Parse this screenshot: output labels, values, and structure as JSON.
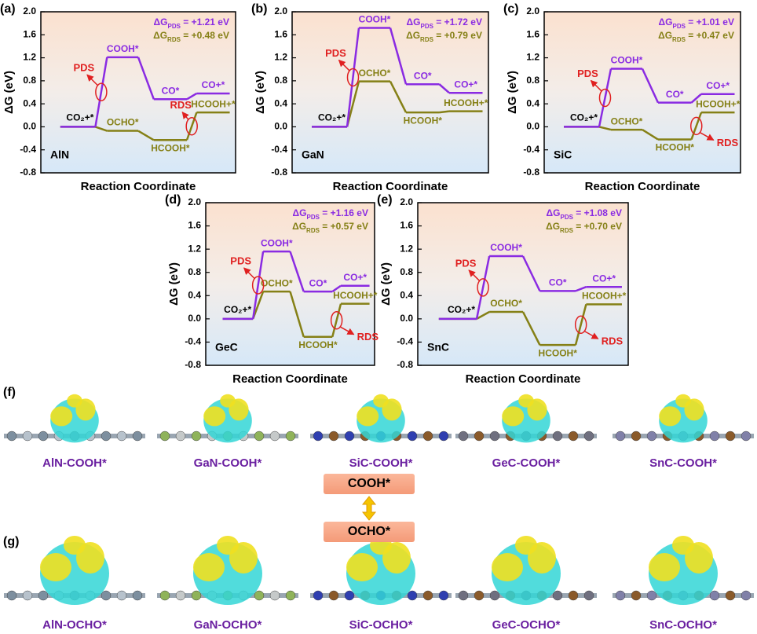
{
  "chart_data": [
    {
      "type": "line",
      "panel": "(a)",
      "material": "AlN",
      "xlabel": "Reaction Coordinate",
      "ylabel": "ΔG (eV)",
      "ylim": [
        -0.8,
        2.0
      ],
      "yticks": [
        -0.8,
        -0.4,
        {
          "value": 0,
          "label": "0.0"
        },
        0.4,
        0.8,
        1.2,
        1.6,
        {
          "value": 2,
          "label": "2.0"
        }
      ],
      "series": [
        {
          "color": "#8a2be2",
          "values": [
            0,
            1.21,
            0.48,
            0.58
          ],
          "point_labels": [
            "CO₂+*",
            "COOH*",
            "CO*",
            "CO+*"
          ]
        },
        {
          "color": "#858016",
          "values": [
            0,
            -0.07,
            -0.23,
            0.25
          ],
          "point_labels": [
            null,
            "OCHO*",
            "HCOOH*",
            "HCOOH+*"
          ]
        }
      ],
      "annotations": [
        [
          "ΔG",
          "PDS",
          " = +1.21 eV"
        ],
        [
          "ΔG",
          "RDS",
          " = +0.48 eV"
        ]
      ],
      "pds_label": "PDS",
      "rds_label": "RDS"
    },
    {
      "type": "line",
      "panel": "(b)",
      "material": "GaN",
      "xlabel": "Reaction Coordinate",
      "ylabel": "ΔG (eV)",
      "ylim": [
        -0.8,
        2.0
      ],
      "yticks": [
        -0.8,
        -0.4,
        {
          "value": 0,
          "label": "0.0"
        },
        0.4,
        0.8,
        1.2,
        1.6,
        {
          "value": 2,
          "label": "2.0"
        }
      ],
      "series": [
        {
          "color": "#8a2be2",
          "values": [
            0,
            1.72,
            0.74,
            0.59
          ],
          "point_labels": [
            "CO₂+*",
            "COOH*",
            "CO*",
            "CO+*"
          ]
        },
        {
          "color": "#858016",
          "values": [
            0,
            0.79,
            0.25,
            0.27
          ],
          "point_labels": [
            null,
            "OCHO*",
            "HCOOH*",
            "HCOOH+*"
          ]
        }
      ],
      "annotations": [
        [
          "ΔG",
          "PDS",
          " = +1.72 eV"
        ],
        [
          "ΔG",
          "RDS",
          " = +0.79 eV"
        ]
      ],
      "pds_label": "PDS"
    },
    {
      "type": "line",
      "panel": "(c)",
      "material": "SiC",
      "xlabel": "Reaction Coordinate",
      "ylabel": "ΔG (eV)",
      "ylim": [
        -0.8,
        2.0
      ],
      "yticks": [
        -0.8,
        -0.4,
        {
          "value": 0,
          "label": "0.0"
        },
        0.4,
        0.8,
        1.2,
        1.6,
        {
          "value": 2,
          "label": "2.0"
        }
      ],
      "series": [
        {
          "color": "#8a2be2",
          "values": [
            0,
            1.01,
            0.42,
            0.57
          ],
          "point_labels": [
            "CO₂+*",
            "COOH*",
            "CO*",
            "CO+*"
          ]
        },
        {
          "color": "#858016",
          "values": [
            0,
            -0.05,
            -0.22,
            0.25
          ],
          "point_labels": [
            null,
            "OCHO*",
            "HCOOH*",
            "HCOOH+*"
          ]
        }
      ],
      "annotations": [
        [
          "ΔG",
          "PDS",
          " = +1.01 eV"
        ],
        [
          "ΔG",
          "RDS",
          " = +0.47 eV"
        ]
      ],
      "pds_label": "PDS",
      "rds_label": "RDS"
    },
    {
      "type": "line",
      "panel": "(d)",
      "material": "GeC",
      "xlabel": "Reaction Coordinate",
      "ylabel": "ΔG (eV)",
      "ylim": [
        -0.8,
        2.0
      ],
      "yticks": [
        -0.8,
        -0.4,
        {
          "value": 0,
          "label": "0.0"
        },
        0.4,
        0.8,
        1.2,
        1.6,
        {
          "value": 2,
          "label": "2.0"
        }
      ],
      "series": [
        {
          "color": "#8a2be2",
          "values": [
            0,
            1.16,
            0.47,
            0.57
          ],
          "point_labels": [
            "CO₂+*",
            "COOH*",
            "CO*",
            "CO+*"
          ]
        },
        {
          "color": "#858016",
          "values": [
            0,
            0.47,
            -0.31,
            0.26
          ],
          "point_labels": [
            null,
            "OCHO*",
            "HCOOH*",
            "HCOOH+*"
          ]
        }
      ],
      "annotations": [
        [
          "ΔG",
          "PDS",
          " = +1.16 eV"
        ],
        [
          "ΔG",
          "RDS",
          " = +0.57 eV"
        ]
      ],
      "pds_label": "PDS",
      "rds_label": "RDS"
    },
    {
      "type": "line",
      "panel": "(e)",
      "material": "SnC",
      "xlabel": "Reaction Coordinate",
      "ylabel": "ΔG (eV)",
      "ylim": [
        -0.8,
        2.0
      ],
      "yticks": [
        -0.8,
        -0.4,
        {
          "value": 0,
          "label": "0.0"
        },
        0.4,
        0.8,
        1.2,
        1.6,
        {
          "value": 2,
          "label": "2.0"
        }
      ],
      "series": [
        {
          "color": "#8a2be2",
          "values": [
            0,
            1.08,
            0.48,
            0.55
          ],
          "point_labels": [
            "CO₂+*",
            "COOH*",
            "CO*",
            "CO+*"
          ]
        },
        {
          "color": "#858016",
          "values": [
            0,
            0.12,
            -0.45,
            0.25
          ],
          "point_labels": [
            null,
            "OCHO*",
            "HCOOH*",
            "HCOOH+*"
          ]
        }
      ],
      "annotations": [
        [
          "ΔG",
          "PDS",
          " = +1.08 eV"
        ],
        [
          "ΔG",
          "RDS",
          " = +0.70 eV"
        ]
      ],
      "pds_label": "PDS",
      "rds_label": "RDS"
    }
  ],
  "structures": {
    "panel_f": "(f)",
    "panel_g": "(g)",
    "cooh_captions": [
      "AlN-COOH*",
      "GaN-COOH*",
      "SiC-COOH*",
      "GeC-COOH*",
      "SnC-COOH*"
    ],
    "ocho_captions": [
      "AlN-OCHO*",
      "GaN-OCHO*",
      "SiC-OCHO*",
      "GeC-OCHO*",
      "SnC-OCHO*"
    ],
    "cooh_box": "COOH*",
    "ocho_box": "OCHO*"
  }
}
